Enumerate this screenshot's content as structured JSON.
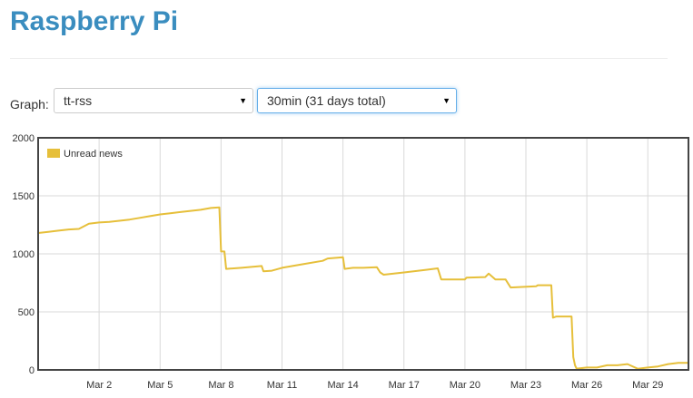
{
  "header": {
    "title": "Raspberry Pi"
  },
  "controls": {
    "graph_label": "Graph:",
    "graph_select": {
      "value": "tt-rss"
    },
    "range_select": {
      "value": "30min (31 days total)"
    }
  },
  "colors": {
    "title": "#3a8dbf",
    "series": "#e6bf3a",
    "grid": "#d9d9d9",
    "frame": "#444444"
  },
  "icons": {
    "dropdown": "caret-down-icon"
  },
  "chart_data": {
    "type": "line",
    "x_type": "date",
    "xlim": [
      "2025-02-27T00:00",
      "2025-03-31T00:00"
    ],
    "ylim": [
      0,
      2000
    ],
    "y_ticks": [
      0,
      500,
      1000,
      1500,
      2000
    ],
    "x_ticks": [
      {
        "date": "2025-03-02",
        "label": "Mar 2"
      },
      {
        "date": "2025-03-05",
        "label": "Mar 5"
      },
      {
        "date": "2025-03-08",
        "label": "Mar 8"
      },
      {
        "date": "2025-03-11",
        "label": "Mar 11"
      },
      {
        "date": "2025-03-14",
        "label": "Mar 14"
      },
      {
        "date": "2025-03-17",
        "label": "Mar 17"
      },
      {
        "date": "2025-03-20",
        "label": "Mar 20"
      },
      {
        "date": "2025-03-23",
        "label": "Mar 23"
      },
      {
        "date": "2025-03-26",
        "label": "Mar 26"
      },
      {
        "date": "2025-03-29",
        "label": "Mar 29"
      }
    ],
    "grid": true,
    "legend": {
      "position": "top-left"
    },
    "series": [
      {
        "name": "Unread news",
        "points": [
          [
            "2025-02-27T00:00",
            1180
          ],
          [
            "2025-02-27T12:00",
            1190
          ],
          [
            "2025-02-28T00:00",
            1200
          ],
          [
            "2025-02-28T12:00",
            1210
          ],
          [
            "2025-03-01T00:00",
            1215
          ],
          [
            "2025-03-01T12:00",
            1260
          ],
          [
            "2025-03-02T00:00",
            1270
          ],
          [
            "2025-03-02T12:00",
            1275
          ],
          [
            "2025-03-03T00:00",
            1285
          ],
          [
            "2025-03-03T12:00",
            1295
          ],
          [
            "2025-03-04T00:00",
            1310
          ],
          [
            "2025-03-04T12:00",
            1325
          ],
          [
            "2025-03-05T00:00",
            1340
          ],
          [
            "2025-03-05T12:00",
            1350
          ],
          [
            "2025-03-06T00:00",
            1360
          ],
          [
            "2025-03-06T12:00",
            1370
          ],
          [
            "2025-03-07T00:00",
            1380
          ],
          [
            "2025-03-07T12:00",
            1395
          ],
          [
            "2025-03-07T22:00",
            1400
          ],
          [
            "2025-03-08T00:00",
            1020
          ],
          [
            "2025-03-08T04:00",
            1020
          ],
          [
            "2025-03-08T06:00",
            870
          ],
          [
            "2025-03-09T00:00",
            880
          ],
          [
            "2025-03-10T00:00",
            895
          ],
          [
            "2025-03-10T02:00",
            850
          ],
          [
            "2025-03-10T12:00",
            855
          ],
          [
            "2025-03-11T00:00",
            880
          ],
          [
            "2025-03-12T00:00",
            910
          ],
          [
            "2025-03-13T00:00",
            940
          ],
          [
            "2025-03-13T06:00",
            960
          ],
          [
            "2025-03-14T00:00",
            970
          ],
          [
            "2025-03-14T02:00",
            870
          ],
          [
            "2025-03-14T12:00",
            880
          ],
          [
            "2025-03-15T00:00",
            880
          ],
          [
            "2025-03-15T16:00",
            885
          ],
          [
            "2025-03-15T20:00",
            840
          ],
          [
            "2025-03-16T00:00",
            820
          ],
          [
            "2025-03-17T00:00",
            840
          ],
          [
            "2025-03-18T00:00",
            860
          ],
          [
            "2025-03-18T16:00",
            875
          ],
          [
            "2025-03-18T20:00",
            780
          ],
          [
            "2025-03-20T00:00",
            780
          ],
          [
            "2025-03-20T02:00",
            795
          ],
          [
            "2025-03-21T00:00",
            800
          ],
          [
            "2025-03-21T04:00",
            830
          ],
          [
            "2025-03-21T12:00",
            780
          ],
          [
            "2025-03-22T00:00",
            780
          ],
          [
            "2025-03-22T06:00",
            710
          ],
          [
            "2025-03-23T12:00",
            720
          ],
          [
            "2025-03-23T14:00",
            730
          ],
          [
            "2025-03-24T06:00",
            730
          ],
          [
            "2025-03-24T08:00",
            450
          ],
          [
            "2025-03-24T12:00",
            460
          ],
          [
            "2025-03-25T06:00",
            460
          ],
          [
            "2025-03-25T08:00",
            110
          ],
          [
            "2025-03-25T10:00",
            40
          ],
          [
            "2025-03-25T12:00",
            10
          ],
          [
            "2025-03-26T00:00",
            20
          ],
          [
            "2025-03-26T12:00",
            20
          ],
          [
            "2025-03-27T00:00",
            40
          ],
          [
            "2025-03-27T12:00",
            40
          ],
          [
            "2025-03-28T00:00",
            50
          ],
          [
            "2025-03-28T12:00",
            10
          ],
          [
            "2025-03-29T00:00",
            20
          ],
          [
            "2025-03-29T12:00",
            30
          ],
          [
            "2025-03-30T00:00",
            50
          ],
          [
            "2025-03-30T12:00",
            60
          ],
          [
            "2025-03-31T00:00",
            60
          ]
        ]
      }
    ]
  }
}
